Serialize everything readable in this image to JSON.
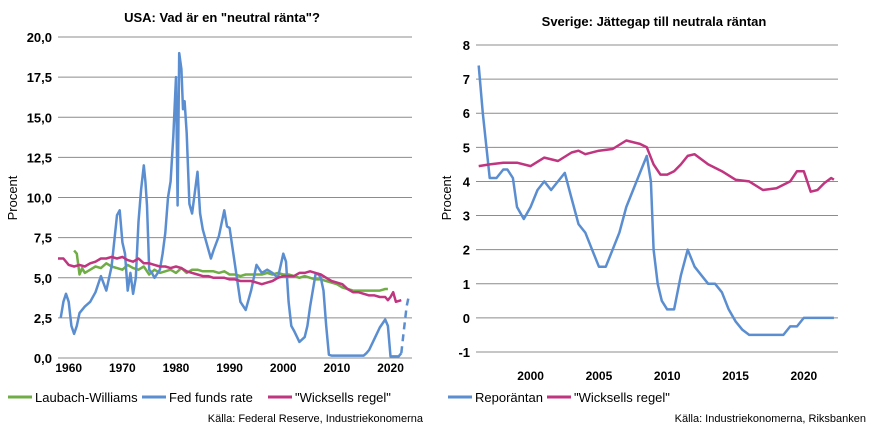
{
  "chart_data": [
    {
      "type": "line",
      "title": "USA: Vad är en \"neutral ränta\"?",
      "xlabel": "",
      "ylabel": "Procent",
      "xlim": [
        1958,
        2024
      ],
      "ylim": [
        0,
        20
      ],
      "y_ticks": [
        "0,0",
        "2,5",
        "5,0",
        "7,5",
        "10,0",
        "12,5",
        "15,0",
        "17,5",
        "20,0"
      ],
      "x_ticks": [
        "1960",
        "1970",
        "1980",
        "1990",
        "2000",
        "2010",
        "2020"
      ],
      "grid": "horizontal",
      "legend_position": "bottom",
      "source": "Källa: Federal Reserve, Industriekonomerna",
      "series": [
        {
          "name": "Laubach-Williams",
          "color": "#70ad47",
          "x": [
            1961,
            1961.5,
            1962,
            1962.5,
            1963,
            1964,
            1965,
            1966,
            1967,
            1968,
            1969,
            1970,
            1971,
            1972,
            1973,
            1974,
            1975,
            1976,
            1977,
            1978,
            1979,
            1980,
            1981,
            1982,
            1983,
            1984,
            1985,
            1986,
            1987,
            1988,
            1989,
            1990,
            1991,
            1992,
            1993,
            1994,
            1995,
            1996,
            1997,
            1998,
            1999,
            2000,
            2001,
            2002,
            2003,
            2004,
            2005,
            2006,
            2007,
            2008,
            2009,
            2010,
            2011,
            2012,
            2013,
            2014,
            2015,
            2016,
            2017,
            2018,
            2019,
            2019.5
          ],
          "y": [
            6.7,
            6.5,
            5.2,
            5.6,
            5.3,
            5.5,
            5.7,
            5.6,
            5.9,
            5.7,
            5.6,
            5.5,
            5.8,
            5.6,
            5.5,
            5.7,
            5.2,
            5.5,
            5.3,
            5.4,
            5.5,
            5.3,
            5.6,
            5.3,
            5.5,
            5.5,
            5.4,
            5.4,
            5.4,
            5.3,
            5.4,
            5.2,
            5.2,
            5.1,
            5.2,
            5.2,
            5.2,
            5.2,
            5.3,
            5.2,
            5.3,
            5.2,
            5.2,
            5.1,
            5.0,
            5.1,
            5.0,
            4.9,
            4.9,
            4.8,
            4.7,
            4.6,
            4.4,
            4.3,
            4.2,
            4.2,
            4.2,
            4.2,
            4.2,
            4.2,
            4.3,
            4.3
          ]
        },
        {
          "name": "Fed funds rate",
          "color": "#5b8ed0",
          "x": [
            1958.5,
            1959,
            1959.5,
            1960,
            1960.5,
            1961,
            1961.5,
            1962,
            1963,
            1964,
            1965,
            1966,
            1967,
            1968,
            1969,
            1969.5,
            1970,
            1970.5,
            1971,
            1971.5,
            1972,
            1972.5,
            1973,
            1973.5,
            1974,
            1974.3,
            1974.6,
            1975,
            1975.5,
            1976,
            1977,
            1977.5,
            1978,
            1978.5,
            1979,
            1979.5,
            1980,
            1980.3,
            1980.6,
            1981,
            1981.3,
            1981.6,
            1982,
            1982.5,
            1983,
            1984,
            1984.5,
            1985,
            1986,
            1986.5,
            1987,
            1988,
            1989,
            1989.5,
            1990,
            1991,
            1992,
            1993,
            1994,
            1995,
            1996,
            1997,
            1998,
            1999,
            2000,
            2000.5,
            2001,
            2001.5,
            2002,
            2003,
            2004,
            2004.5,
            2005,
            2006,
            2006.5,
            2007,
            2007.5,
            2008,
            2008.5,
            2009,
            2010,
            2015,
            2015.5,
            2016,
            2017,
            2018,
            2019,
            2019.5,
            2020,
            2020.3,
            2021,
            2021.5,
            2022
          ],
          "y": [
            2.5,
            3.5,
            4.0,
            3.5,
            2.0,
            1.5,
            2.0,
            2.8,
            3.2,
            3.5,
            4.1,
            5.1,
            4.2,
            5.7,
            8.9,
            9.2,
            7.2,
            6.5,
            4.2,
            5.3,
            4.0,
            5.0,
            8.5,
            10.5,
            12.0,
            11.0,
            9.5,
            5.5,
            5.3,
            5.0,
            5.5,
            6.5,
            7.8,
            10.0,
            11.0,
            13.8,
            17.5,
            9.5,
            19.0,
            18.0,
            15.5,
            16.0,
            14.0,
            9.6,
            9.0,
            11.6,
            9.0,
            8.0,
            6.8,
            6.2,
            6.7,
            7.6,
            9.2,
            8.2,
            8.1,
            5.8,
            3.5,
            3.0,
            4.2,
            5.8,
            5.3,
            5.5,
            5.3,
            5.0,
            6.5,
            6.0,
            3.5,
            2.0,
            1.7,
            1.0,
            1.3,
            2.0,
            3.2,
            5.2,
            5.25,
            5.0,
            4.2,
            2.0,
            0.2,
            0.15,
            0.15,
            0.15,
            0.3,
            0.5,
            1.2,
            1.9,
            2.4,
            2.0,
            0.1,
            0.1,
            0.1,
            0.1,
            0.3
          ]
        },
        {
          "name": "Fed funds rate",
          "color": "#5b8ed0",
          "dashed": true,
          "x": [
            2022,
            2022.5,
            2023,
            2023.5
          ],
          "y": [
            0.3,
            1.8,
            3.2,
            4.0
          ]
        },
        {
          "name": "\"Wicksells regel\"",
          "color": "#c0357f",
          "x": [
            1958,
            1959,
            1960,
            1961,
            1962,
            1963,
            1964,
            1965,
            1966,
            1967,
            1968,
            1969,
            1970,
            1971,
            1972,
            1973,
            1974,
            1975,
            1976,
            1977,
            1978,
            1979,
            1980,
            1981,
            1982,
            1983,
            1984,
            1985,
            1986,
            1987,
            1988,
            1989,
            1990,
            1991,
            1992,
            1993,
            1994,
            1995,
            1996,
            1997,
            1998,
            1999,
            2000,
            2001,
            2002,
            2003,
            2004,
            2005,
            2006,
            2007,
            2008,
            2009,
            2010,
            2011,
            2012,
            2013,
            2014,
            2015,
            2016,
            2017,
            2018,
            2019,
            2019.5,
            2020,
            2020.5,
            2021,
            2022
          ],
          "y": [
            6.2,
            6.2,
            5.8,
            5.7,
            5.8,
            5.7,
            5.9,
            6.0,
            6.2,
            6.2,
            6.3,
            6.2,
            6.3,
            6.1,
            6.0,
            6.2,
            5.9,
            5.9,
            5.8,
            5.7,
            5.7,
            5.6,
            5.7,
            5.6,
            5.4,
            5.3,
            5.2,
            5.1,
            5.1,
            5.0,
            5.0,
            5.0,
            4.9,
            4.9,
            4.8,
            4.8,
            4.8,
            4.7,
            4.6,
            4.7,
            4.8,
            5.0,
            5.1,
            5.1,
            5.1,
            5.3,
            5.3,
            5.4,
            5.3,
            5.2,
            5.0,
            4.8,
            4.7,
            4.6,
            4.3,
            4.1,
            4.1,
            4.0,
            3.9,
            3.9,
            3.8,
            3.8,
            3.6,
            3.8,
            4.1,
            3.5,
            3.6
          ]
        }
      ],
      "legend": [
        {
          "label": "Laubach-Williams",
          "color": "#70ad47",
          "dashed": false
        },
        {
          "label": "Fed funds rate",
          "color": "#5b8ed0",
          "dashed": false
        },
        {
          "label": "\"Wicksells regel\"",
          "color": "#c0357f",
          "dashed": false
        }
      ]
    },
    {
      "type": "line",
      "title": "Sverige: Jättegap till neutrala räntan",
      "xlabel": "",
      "ylabel": "Procent",
      "xlim": [
        1996,
        2022.5
      ],
      "ylim": [
        -1,
        8
      ],
      "y_ticks": [
        "-1",
        "0",
        "1",
        "2",
        "3",
        "4",
        "5",
        "6",
        "7",
        "8"
      ],
      "x_ticks": [
        "2000",
        "2005",
        "2010",
        "2015",
        "2020"
      ],
      "grid": "horizontal",
      "legend_position": "bottom",
      "source": "Källa: Industriekonomerna, Riksbanken",
      "series": [
        {
          "name": "Reporäntan",
          "color": "#5b8ed0",
          "x": [
            1996.2,
            1996.5,
            1997,
            1997.5,
            1998,
            1998.3,
            1998.7,
            1999,
            1999.5,
            2000,
            2000.5,
            2001,
            2001.5,
            2002,
            2002.5,
            2003,
            2003.5,
            2004,
            2004.5,
            2005,
            2005.5,
            2006,
            2006.5,
            2007,
            2007.5,
            2008,
            2008.5,
            2008.8,
            2009,
            2009.3,
            2009.6,
            2010,
            2010.5,
            2011,
            2011.5,
            2012,
            2012.5,
            2013,
            2013.5,
            2014,
            2014.5,
            2015,
            2015.5,
            2016,
            2016.5,
            2017,
            2017.5,
            2018,
            2018.5,
            2019,
            2019.5,
            2020,
            2022.2
          ],
          "y": [
            7.4,
            6.0,
            4.1,
            4.1,
            4.35,
            4.35,
            4.1,
            3.25,
            2.9,
            3.25,
            3.75,
            4.0,
            3.75,
            4.0,
            4.25,
            3.5,
            2.75,
            2.5,
            2.0,
            1.5,
            1.5,
            2.0,
            2.5,
            3.25,
            3.75,
            4.25,
            4.75,
            4.0,
            2.0,
            1.0,
            0.5,
            0.25,
            0.25,
            1.25,
            2.0,
            1.5,
            1.25,
            1.0,
            1.0,
            0.75,
            0.25,
            -0.1,
            -0.35,
            -0.5,
            -0.5,
            -0.5,
            -0.5,
            -0.5,
            -0.5,
            -0.25,
            -0.25,
            0.0,
            0.0
          ]
        },
        {
          "name": "\"Wicksells regel\"",
          "color": "#c0357f",
          "x": [
            1996.2,
            1997,
            1998,
            1999,
            2000,
            2001,
            2002,
            2003,
            2003.5,
            2004,
            2005,
            2006,
            2007,
            2008,
            2008.5,
            2009,
            2009.5,
            2010,
            2010.5,
            2011,
            2011.5,
            2012,
            2013,
            2014,
            2015,
            2016,
            2017,
            2018,
            2019,
            2019.5,
            2020,
            2020.5,
            2021,
            2021.5,
            2022,
            2022.2
          ],
          "y": [
            4.45,
            4.5,
            4.55,
            4.55,
            4.45,
            4.7,
            4.6,
            4.85,
            4.9,
            4.8,
            4.9,
            4.95,
            5.2,
            5.1,
            5.0,
            4.5,
            4.2,
            4.2,
            4.3,
            4.5,
            4.75,
            4.8,
            4.5,
            4.3,
            4.05,
            4.0,
            3.75,
            3.8,
            4.0,
            4.3,
            4.3,
            3.7,
            3.75,
            3.95,
            4.1,
            4.05
          ]
        }
      ],
      "legend": [
        {
          "label": "Reporäntan",
          "color": "#5b8ed0",
          "dashed": false
        },
        {
          "label": "\"Wicksells regel\"",
          "color": "#c0357f",
          "dashed": false
        }
      ]
    }
  ]
}
